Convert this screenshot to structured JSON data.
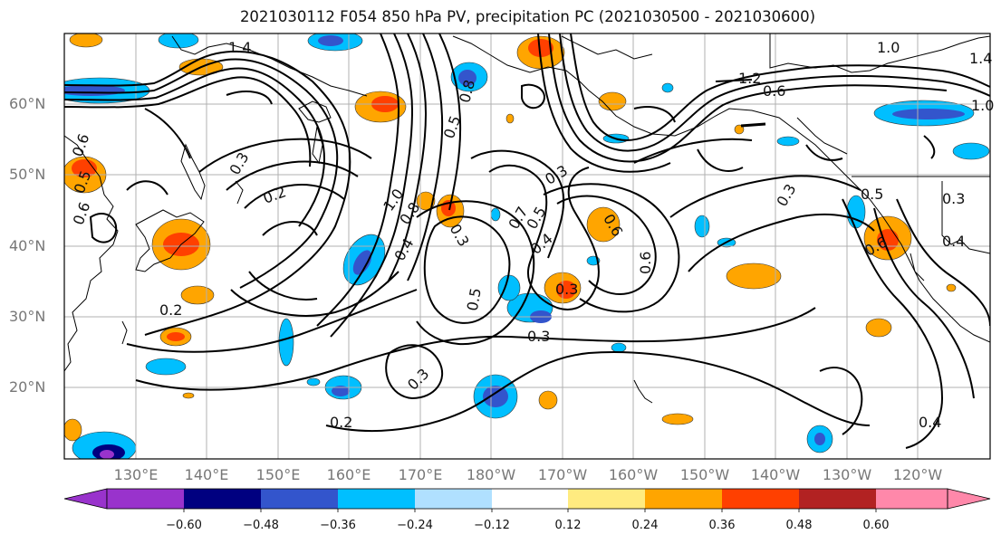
{
  "title": "2021030112 F054 850 hPa PV, precipitation PC (2021030500 - 2021030600)",
  "map": {
    "lat_labels": [
      "60°N",
      "50°N",
      "40°N",
      "30°N",
      "20°N"
    ],
    "lon_labels": [
      "130°E",
      "140°E",
      "150°E",
      "160°E",
      "170°E",
      "180°W",
      "170°W",
      "160°W",
      "150°W",
      "140°W",
      "130°W",
      "120°W"
    ],
    "contour_labels": [
      "1.4",
      "1.0",
      "1.4",
      "1.2",
      "0.6",
      "1.0",
      "0.6",
      "0.5",
      "0.6",
      "0.3",
      "0.2",
      "1.0",
      "0.8",
      "0.5",
      "0.8",
      "0.3",
      "0.4",
      "0.7",
      "0.5",
      "0.3",
      "0.6",
      "0.3",
      "0.5",
      "0.6",
      "0.4",
      "0.3",
      "0.2",
      "0.2",
      "0.3",
      "0.5",
      "0.3",
      "0.4",
      "0.3",
      "0.6",
      "0.4"
    ]
  },
  "colorbar": {
    "colors": [
      "#9933cc",
      "#000080",
      "#3355cc",
      "#00bfff",
      "#b0e0ff",
      "#ffffff",
      "#ffeb80",
      "#ffa500",
      "#ff4000",
      "#b22222",
      "#ff88aa"
    ],
    "ticks": [
      "−0.60",
      "−0.48",
      "−0.36",
      "−0.24",
      "−0.12",
      "0.12",
      "0.24",
      "0.36",
      "0.48",
      "0.60"
    ]
  }
}
